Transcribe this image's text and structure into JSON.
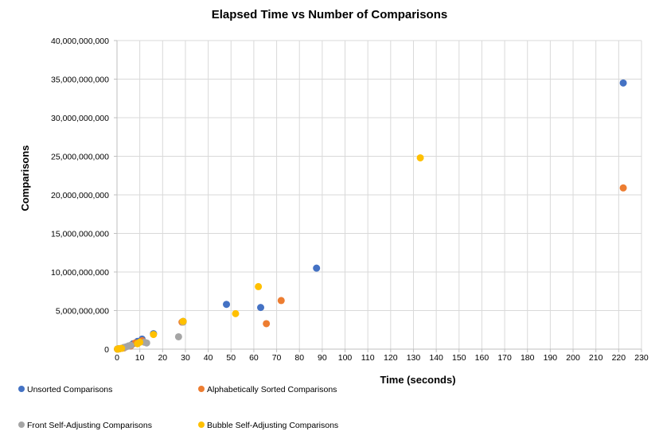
{
  "chart_data": {
    "type": "scatter",
    "title": "Elapsed Time vs Number of Comparisons",
    "xlabel": "Time (seconds)",
    "ylabel": "Comparisons",
    "xlim": [
      0,
      230
    ],
    "ylim": [
      0,
      40000000000
    ],
    "x_ticks": [
      0,
      10,
      20,
      30,
      40,
      50,
      60,
      70,
      80,
      90,
      100,
      110,
      120,
      130,
      140,
      150,
      160,
      170,
      180,
      190,
      200,
      210,
      220,
      230
    ],
    "y_ticks": [
      0,
      5000000000,
      10000000000,
      15000000000,
      20000000000,
      25000000000,
      30000000000,
      35000000000,
      40000000000
    ],
    "y_tick_labels": [
      "0",
      "5,000,000,000",
      "10,000,000,000",
      "15,000,000,000",
      "20,000,000,000",
      "25,000,000,000",
      "30,000,000,000",
      "35,000,000,000",
      "40,000,000,000"
    ],
    "grid": true,
    "legend_position": "bottom",
    "series": [
      {
        "name": "Unsorted Comparisons",
        "color": "#4472C4",
        "points": [
          [
            0.2,
            10000000
          ],
          [
            0.5,
            30000000
          ],
          [
            1,
            60000000
          ],
          [
            3,
            200000000
          ],
          [
            5,
            400000000
          ],
          [
            7,
            700000000
          ],
          [
            9,
            1000000000
          ],
          [
            11,
            1300000000
          ],
          [
            16,
            2000000000
          ],
          [
            29,
            3600000000
          ],
          [
            48,
            5800000000
          ],
          [
            63,
            5400000000
          ],
          [
            87.5,
            10500000000
          ],
          [
            222,
            34500000000
          ]
        ]
      },
      {
        "name": "Alphabetically Sorted Comparisons",
        "color": "#ED7D31",
        "points": [
          [
            0.2,
            10000000
          ],
          [
            0.5,
            20000000
          ],
          [
            1,
            50000000
          ],
          [
            3,
            150000000
          ],
          [
            6,
            400000000
          ],
          [
            8,
            800000000
          ],
          [
            11,
            1100000000
          ],
          [
            28.5,
            3500000000
          ],
          [
            65.5,
            3300000000
          ],
          [
            72,
            6300000000
          ],
          [
            222,
            20900000000
          ]
        ]
      },
      {
        "name": "Front Self-Adjusting Comparisons",
        "color": "#A5A5A5",
        "points": [
          [
            0.2,
            10000000
          ],
          [
            0.5,
            20000000
          ],
          [
            1,
            40000000
          ],
          [
            2,
            100000000
          ],
          [
            3,
            200000000
          ],
          [
            4,
            300000000
          ],
          [
            5,
            400000000
          ],
          [
            6,
            500000000
          ],
          [
            12,
            900000000
          ],
          [
            13,
            800000000
          ],
          [
            27,
            1600000000
          ],
          [
            29,
            3500000000
          ]
        ]
      },
      {
        "name": "Bubble Self-Adjusting Comparisons",
        "color": "#FFC000",
        "points": [
          [
            0.2,
            10000000
          ],
          [
            0.5,
            20000000
          ],
          [
            1,
            50000000
          ],
          [
            2,
            100000000
          ],
          [
            9,
            700000000
          ],
          [
            10,
            900000000
          ],
          [
            16,
            1900000000
          ],
          [
            29,
            3600000000
          ],
          [
            52,
            4600000000
          ],
          [
            62,
            8100000000
          ],
          [
            133,
            24800000000
          ]
        ]
      }
    ]
  }
}
